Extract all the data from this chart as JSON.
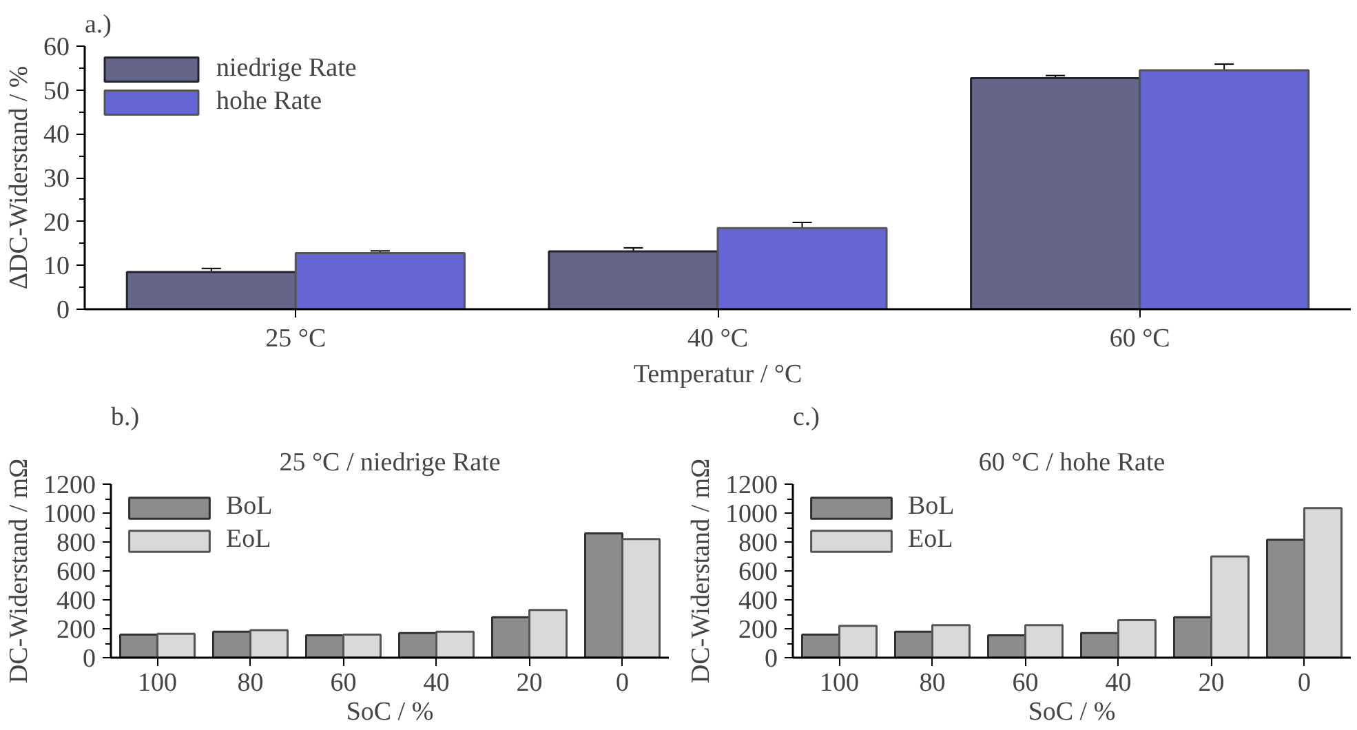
{
  "chart_data": [
    {
      "type": "bar",
      "xlabel": "Temperatur / °C",
      "ylabel": "ΔDC-Widerstand / %",
      "annotations": [
        "a.)"
      ],
      "categories": [
        "25 °C",
        "40 °C",
        "60 °C"
      ],
      "ylim": [
        0,
        60
      ],
      "yticks": [
        0,
        10,
        20,
        30,
        40,
        50,
        60
      ],
      "grid": false,
      "legend": "top left",
      "series": [
        {
          "name": "niedrige Rate",
          "color": "#65658a",
          "values": [
            8.5,
            13.2,
            52.7
          ],
          "errors": [
            0.8,
            0.8,
            0.6
          ]
        },
        {
          "name": "hohe Rate",
          "color": "#6565d6",
          "values": [
            12.8,
            18.5,
            54.5
          ],
          "errors": [
            0.5,
            1.3,
            1.4
          ]
        }
      ]
    },
    {
      "type": "bar",
      "title": "25 °C / niedrige Rate",
      "xlabel": "SoC / %",
      "ylabel": "DC-Widerstand / mΩ",
      "annotations": [
        "b.)"
      ],
      "categories": [
        "100",
        "80",
        "60",
        "40",
        "20",
        "0"
      ],
      "ylim": [
        0,
        1200
      ],
      "yticks": [
        0,
        200,
        400,
        600,
        800,
        1000,
        1200
      ],
      "grid": false,
      "legend": "top left",
      "series": [
        {
          "name": "BoL",
          "color": "#8c8c8c",
          "values": [
            160,
            180,
            155,
            170,
            280,
            860
          ]
        },
        {
          "name": "EoL",
          "color": "#d9d9d9",
          "values": [
            165,
            190,
            160,
            180,
            330,
            820
          ]
        }
      ]
    },
    {
      "type": "bar",
      "title": "60 °C / hohe Rate",
      "xlabel": "SoC / %",
      "ylabel": "DC-Widerstand / mΩ",
      "annotations": [
        "c.)"
      ],
      "categories": [
        "100",
        "80",
        "60",
        "40",
        "20",
        "0"
      ],
      "ylim": [
        0,
        1200
      ],
      "yticks": [
        0,
        200,
        400,
        600,
        800,
        1000,
        1200
      ],
      "grid": false,
      "legend": "top left",
      "series": [
        {
          "name": "BoL",
          "color": "#8c8c8c",
          "values": [
            160,
            180,
            155,
            170,
            280,
            815
          ]
        },
        {
          "name": "EoL",
          "color": "#d9d9d9",
          "values": [
            220,
            225,
            225,
            260,
            700,
            1035
          ]
        }
      ]
    }
  ]
}
